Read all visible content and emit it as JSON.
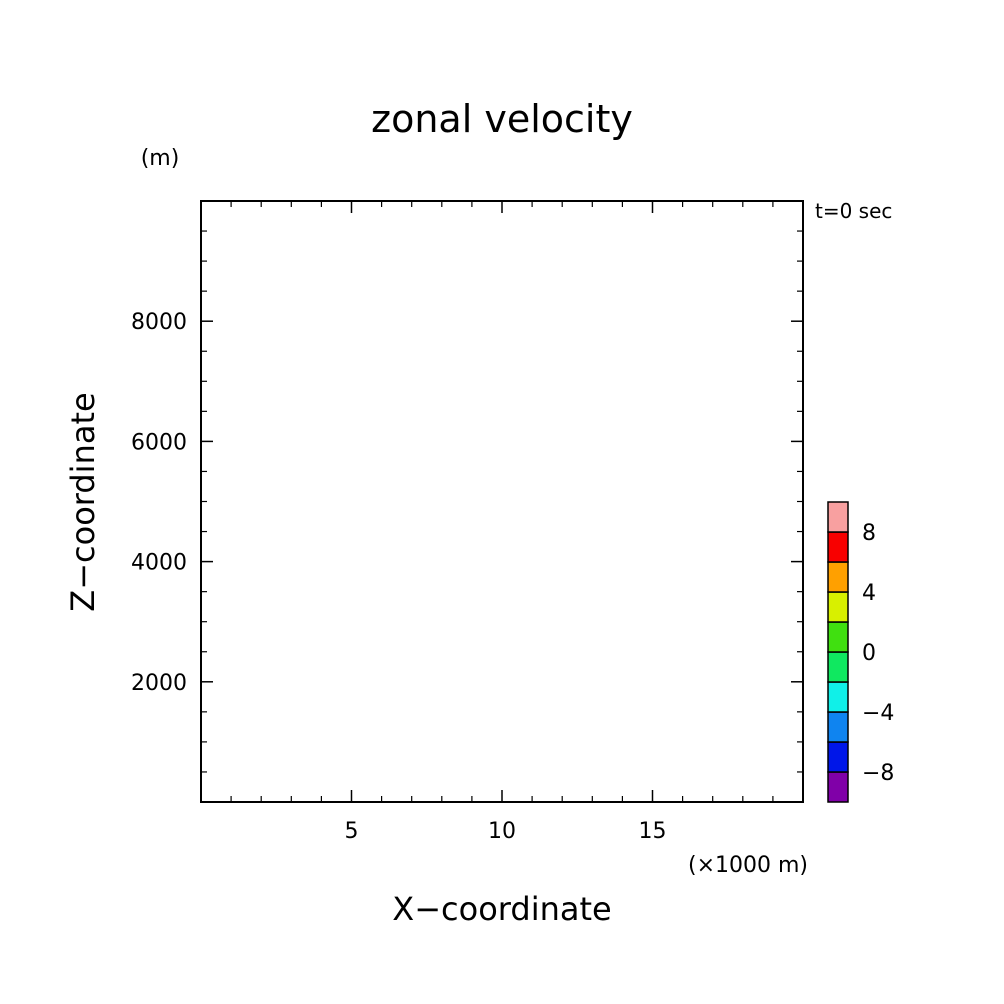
{
  "chart_data": {
    "type": "heatmap",
    "title": "zonal velocity",
    "xlabel": "X−coordinate",
    "ylabel": "Z−coordinate",
    "x_units": "(×1000 m)",
    "y_units": "(m)",
    "time_label": "t=0 sec",
    "xlim": [
      0,
      20
    ],
    "ylim": [
      0,
      10000
    ],
    "x_major_ticks": [
      5,
      10,
      15
    ],
    "x_minor_ticks": [
      1,
      2,
      3,
      4,
      6,
      7,
      8,
      9,
      11,
      12,
      13,
      14,
      16,
      17,
      18,
      19
    ],
    "y_major_ticks": [
      2000,
      4000,
      6000,
      8000
    ],
    "y_minor_ticks": [
      500,
      1000,
      1500,
      2500,
      3000,
      3500,
      4500,
      5000,
      5500,
      6500,
      7000,
      7500,
      8500,
      9000,
      9500
    ],
    "x_tick_labels": [
      "5",
      "10",
      "15"
    ],
    "y_tick_labels": [
      "2000",
      "4000",
      "6000",
      "8000"
    ],
    "field_values": [],
    "colorbar": {
      "levels": [
        -10,
        -8,
        -6,
        -4,
        -2,
        0,
        2,
        4,
        6,
        8,
        10
      ],
      "colors": [
        "#8000a8",
        "#0016e8",
        "#0f84f0",
        "#10f0e8",
        "#10e860",
        "#40e010",
        "#d8f000",
        "#ffa000",
        "#f80000",
        "#f8a0a0"
      ],
      "labels": [
        "−8",
        "−4",
        "0",
        "4",
        "8"
      ],
      "label_values": [
        -8,
        -4,
        0,
        4,
        8
      ]
    }
  }
}
